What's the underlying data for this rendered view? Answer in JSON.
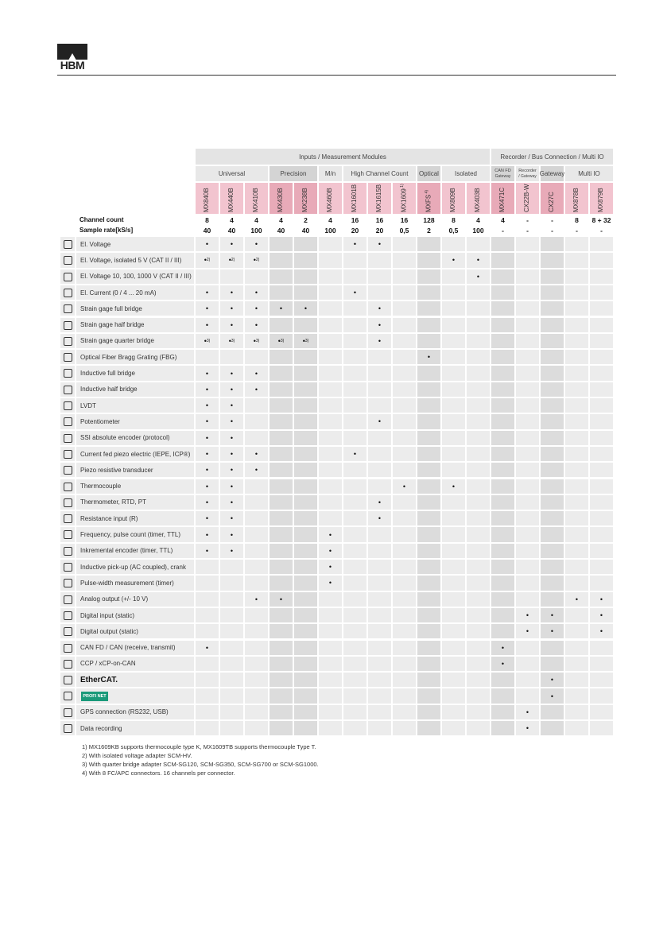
{
  "header": {
    "logo": "HBM"
  },
  "table": {
    "groups": [
      {
        "label": "Inputs / Measurement Modules",
        "span": 12
      },
      {
        "label": "Recorder / Bus Connection / Multi IO",
        "span": 5
      }
    ],
    "subgroups": [
      {
        "label": "Universal",
        "span": 3
      },
      {
        "label": "Precision",
        "span": 2
      },
      {
        "label": "M/n",
        "span": 1
      },
      {
        "label": "High Channel Count",
        "span": 3
      },
      {
        "label": "Optical",
        "span": 1
      },
      {
        "label": "Isolated",
        "span": 2
      },
      {
        "label": "CAN FD",
        "sublabel": "Gateway",
        "span": 1
      },
      {
        "label": "Recorder",
        "sublabel": "/ Gateway",
        "span": 1
      },
      {
        "label": "Gateway",
        "span": 1
      },
      {
        "label": "Multi IO",
        "span": 2
      }
    ],
    "models": [
      {
        "name": "MX840B"
      },
      {
        "name": "MX440B"
      },
      {
        "name": "MX410B"
      },
      {
        "name": "MX430B"
      },
      {
        "name": "MX238B"
      },
      {
        "name": "MX460B"
      },
      {
        "name": "MX1601B"
      },
      {
        "name": "MX1615B"
      },
      {
        "name": "MX1609",
        "note": "1)"
      },
      {
        "name": "MXFS",
        "note": "4)"
      },
      {
        "name": "MX809B"
      },
      {
        "name": "MX403B"
      },
      {
        "name": "MX471C"
      },
      {
        "name": "CX22B-W"
      },
      {
        "name": "CX27C"
      },
      {
        "name": "MX878B"
      },
      {
        "name": "MX879B"
      }
    ],
    "channel_count": {
      "label": "Channel count",
      "values": [
        8,
        4,
        4,
        4,
        2,
        4,
        16,
        16,
        16,
        128,
        8,
        4,
        4,
        "-",
        "-",
        8,
        "8 + 32"
      ]
    },
    "sample_rate": {
      "label": "Sample rate[kS/s]",
      "values": [
        40,
        40,
        100,
        40,
        40,
        100,
        20,
        20,
        "0,5",
        2,
        "0,5",
        100,
        "-",
        "-",
        "-",
        "-",
        "-"
      ]
    },
    "features": [
      {
        "label": "El. Voltage",
        "cells": [
          "•",
          "•",
          "•",
          null,
          null,
          null,
          "•",
          "•",
          null,
          null,
          null,
          null,
          null,
          null,
          null,
          null,
          null
        ]
      },
      {
        "label": "El. Voltage, isolated 5 V (CAT II / III)",
        "cells": [
          {
            "mark": "•",
            "note": "2)"
          },
          {
            "mark": "•",
            "note": "2)"
          },
          {
            "mark": "•",
            "note": "2)"
          },
          null,
          null,
          null,
          null,
          null,
          null,
          null,
          "•",
          "•",
          null,
          null,
          null,
          null,
          null
        ]
      },
      {
        "label": "El. Voltage 10, 100, 1000 V (CAT II / III)",
        "cells": [
          null,
          null,
          null,
          null,
          null,
          null,
          null,
          null,
          null,
          null,
          null,
          "•",
          null,
          null,
          null,
          null,
          null
        ]
      },
      {
        "label": "El. Current (0 / 4 ... 20 mA)",
        "cells": [
          "•",
          "•",
          "•",
          null,
          null,
          null,
          "•",
          null,
          null,
          null,
          null,
          null,
          null,
          null,
          null,
          null,
          null
        ]
      },
      {
        "label": "Strain gage full bridge",
        "cells": [
          "•",
          "•",
          "•",
          "•",
          "•",
          null,
          null,
          "•",
          null,
          null,
          null,
          null,
          null,
          null,
          null,
          null,
          null
        ]
      },
      {
        "label": "Strain gage half bridge",
        "cells": [
          "•",
          "•",
          "•",
          null,
          null,
          null,
          null,
          "•",
          null,
          null,
          null,
          null,
          null,
          null,
          null,
          null,
          null
        ]
      },
      {
        "label": "Strain gage quarter bridge",
        "cells": [
          {
            "mark": "•",
            "note": "3)"
          },
          {
            "mark": "•",
            "note": "3)"
          },
          {
            "mark": "•",
            "note": "3)"
          },
          {
            "mark": "•",
            "note": "3)"
          },
          {
            "mark": "•",
            "note": "3)"
          },
          null,
          null,
          "•",
          null,
          null,
          null,
          null,
          null,
          null,
          null,
          null,
          null
        ]
      },
      {
        "label": "Optical Fiber Bragg Grating (FBG)",
        "cells": [
          null,
          null,
          null,
          null,
          null,
          null,
          null,
          null,
          null,
          "•",
          null,
          null,
          null,
          null,
          null,
          null,
          null
        ]
      },
      {
        "label": "Inductive full bridge",
        "cells": [
          "•",
          "•",
          "•",
          null,
          null,
          null,
          null,
          null,
          null,
          null,
          null,
          null,
          null,
          null,
          null,
          null,
          null
        ]
      },
      {
        "label": "Inductive half bridge",
        "cells": [
          "•",
          "•",
          "•",
          null,
          null,
          null,
          null,
          null,
          null,
          null,
          null,
          null,
          null,
          null,
          null,
          null,
          null
        ]
      },
      {
        "label": "LVDT",
        "cells": [
          "•",
          "•",
          null,
          null,
          null,
          null,
          null,
          null,
          null,
          null,
          null,
          null,
          null,
          null,
          null,
          null,
          null
        ]
      },
      {
        "label": "Potentiometer",
        "cells": [
          "•",
          "•",
          null,
          null,
          null,
          null,
          null,
          "•",
          null,
          null,
          null,
          null,
          null,
          null,
          null,
          null,
          null
        ]
      },
      {
        "label": "SSI absolute encoder (protocol)",
        "cells": [
          "•",
          "•",
          null,
          null,
          null,
          null,
          null,
          null,
          null,
          null,
          null,
          null,
          null,
          null,
          null,
          null,
          null
        ]
      },
      {
        "label": "Current fed piezo electric (IEPE, ICP®)",
        "cells": [
          "•",
          "•",
          "•",
          null,
          null,
          null,
          "•",
          null,
          null,
          null,
          null,
          null,
          null,
          null,
          null,
          null,
          null
        ]
      },
      {
        "label": "Piezo resistive transducer",
        "cells": [
          "•",
          "•",
          "•",
          null,
          null,
          null,
          null,
          null,
          null,
          null,
          null,
          null,
          null,
          null,
          null,
          null,
          null
        ]
      },
      {
        "label": "Thermocouple",
        "cells": [
          "•",
          "•",
          null,
          null,
          null,
          null,
          null,
          null,
          "•",
          null,
          "•",
          null,
          null,
          null,
          null,
          null,
          null
        ]
      },
      {
        "label": "Thermometer, RTD, PT",
        "cells": [
          "•",
          "•",
          null,
          null,
          null,
          null,
          null,
          "•",
          null,
          null,
          null,
          null,
          null,
          null,
          null,
          null,
          null
        ]
      },
      {
        "label": "Resistance input (R)",
        "cells": [
          "•",
          "•",
          null,
          null,
          null,
          null,
          null,
          "•",
          null,
          null,
          null,
          null,
          null,
          null,
          null,
          null,
          null
        ]
      },
      {
        "label": "Frequency, pulse count (timer, TTL)",
        "cells": [
          "•",
          "•",
          null,
          null,
          null,
          "•",
          null,
          null,
          null,
          null,
          null,
          null,
          null,
          null,
          null,
          null,
          null
        ]
      },
      {
        "label": "Inkremental encoder (timer, TTL)",
        "cells": [
          "•",
          "•",
          null,
          null,
          null,
          "•",
          null,
          null,
          null,
          null,
          null,
          null,
          null,
          null,
          null,
          null,
          null
        ]
      },
      {
        "label": "Inductive pick-up (AC coupled), crank",
        "cells": [
          null,
          null,
          null,
          null,
          null,
          "•",
          null,
          null,
          null,
          null,
          null,
          null,
          null,
          null,
          null,
          null,
          null
        ]
      },
      {
        "label": "Pulse-width measurement (timer)",
        "cells": [
          null,
          null,
          null,
          null,
          null,
          "•",
          null,
          null,
          null,
          null,
          null,
          null,
          null,
          null,
          null,
          null,
          null
        ]
      },
      {
        "label": "Analog output (+/- 10 V)",
        "cells": [
          null,
          null,
          "•",
          "•",
          null,
          null,
          null,
          null,
          null,
          null,
          null,
          null,
          null,
          null,
          null,
          "•",
          "•"
        ]
      },
      {
        "label": "Digital input (static)",
        "cells": [
          null,
          null,
          null,
          null,
          null,
          null,
          null,
          null,
          null,
          null,
          null,
          null,
          null,
          "•",
          "•",
          null,
          "•"
        ]
      },
      {
        "label": "Digital output (static)",
        "cells": [
          null,
          null,
          null,
          null,
          null,
          null,
          null,
          null,
          null,
          null,
          null,
          null,
          null,
          "•",
          "•",
          null,
          "•"
        ]
      },
      {
        "label": "CAN FD / CAN (receive, transmit)",
        "cells": [
          "•",
          null,
          null,
          null,
          null,
          null,
          null,
          null,
          null,
          null,
          null,
          null,
          "•",
          null,
          null,
          null,
          null
        ]
      },
      {
        "label": "CCP / xCP-on-CAN",
        "cells": [
          null,
          null,
          null,
          null,
          null,
          null,
          null,
          null,
          null,
          null,
          null,
          null,
          "•",
          null,
          null,
          null,
          null
        ]
      },
      {
        "label": "EtherCAT.",
        "logo": "ethercat",
        "cells": [
          null,
          null,
          null,
          null,
          null,
          null,
          null,
          null,
          null,
          null,
          null,
          null,
          null,
          null,
          "•",
          null,
          null
        ]
      },
      {
        "label": "PROFI NET",
        "logo": "profinet",
        "cells": [
          null,
          null,
          null,
          null,
          null,
          null,
          null,
          null,
          null,
          null,
          null,
          null,
          null,
          null,
          "•",
          null,
          null
        ]
      },
      {
        "label": "GPS connection (RS232, USB)",
        "cells": [
          null,
          null,
          null,
          null,
          null,
          null,
          null,
          null,
          null,
          null,
          null,
          null,
          null,
          "•",
          null,
          null,
          null
        ]
      },
      {
        "label": "Data recording",
        "cells": [
          null,
          null,
          null,
          null,
          null,
          null,
          null,
          null,
          null,
          null,
          null,
          null,
          null,
          "•",
          null,
          null,
          null
        ]
      }
    ]
  },
  "footnotes": [
    "1) MX1609KB supports thermocouple type K, MX1609TB supports thermocouple Type T.",
    "2) With isolated voltage adapter SCM-HV.",
    "3) With quarter bridge adapter SCM-SG120, SCM-SG350, SCM-SG700 or SCM-SG1000.",
    "4) With 8 FC/APC connectors. 16 channels per connector."
  ]
}
